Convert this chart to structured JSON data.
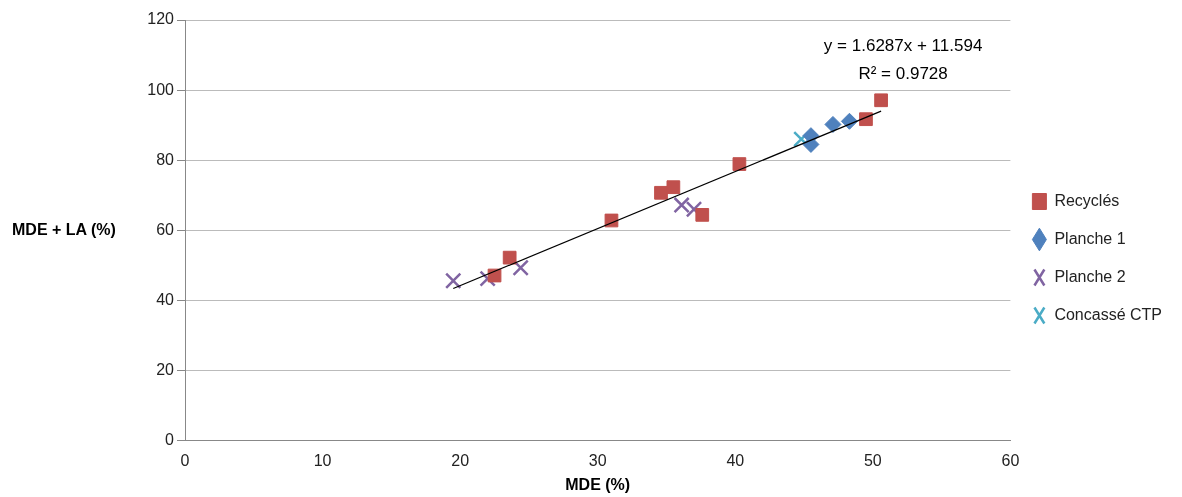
{
  "chart_data": {
    "type": "scatter",
    "xlabel": "MDE (%)",
    "ylabel": "MDE + LA (%)",
    "xlim": [
      0,
      60
    ],
    "xticks": [
      0,
      10,
      20,
      30,
      40,
      50,
      60
    ],
    "ylim": [
      0,
      120
    ],
    "yticks": [
      0,
      20,
      40,
      60,
      80,
      100,
      120
    ],
    "grid": "y",
    "legend": "right",
    "annotations": [
      "y = 1.6287x + 11.594",
      "R² = 0.9728"
    ],
    "series": [
      {
        "name": "Recyclés",
        "color": "#c0504d",
        "marker": "square",
        "x": [
          22.5,
          23.6,
          31.0,
          34.6,
          35.5,
          37.6,
          40.3,
          49.5,
          50.6
        ],
        "values": [
          47.1,
          52.2,
          62.8,
          70.7,
          72.3,
          64.4,
          78.9,
          91.7,
          97.1
        ]
      },
      {
        "name": "Planche 1",
        "color": "#4f81bd",
        "marker": "diamond",
        "x": [
          45.5,
          45.5,
          47.1,
          48.3
        ],
        "values": [
          87,
          84.5,
          90.2,
          91.1
        ]
      },
      {
        "name": "Planche 2",
        "color": "#8064a2",
        "marker": "cross",
        "x": [
          19.5,
          22.0,
          24.4,
          36.1,
          37.0
        ],
        "values": [
          45.6,
          46.2,
          49.3,
          67.2,
          66
        ]
      },
      {
        "name": "Concassé CTP",
        "color": "#4bacc6",
        "marker": "cross",
        "x": [
          44.8
        ],
        "values": [
          86
        ]
      },
      {
        "type": "line",
        "color": "#000000",
        "marker": "none",
        "x": [
          19.5,
          50.6
        ],
        "values": [
          43.4,
          94.0
        ]
      }
    ]
  }
}
